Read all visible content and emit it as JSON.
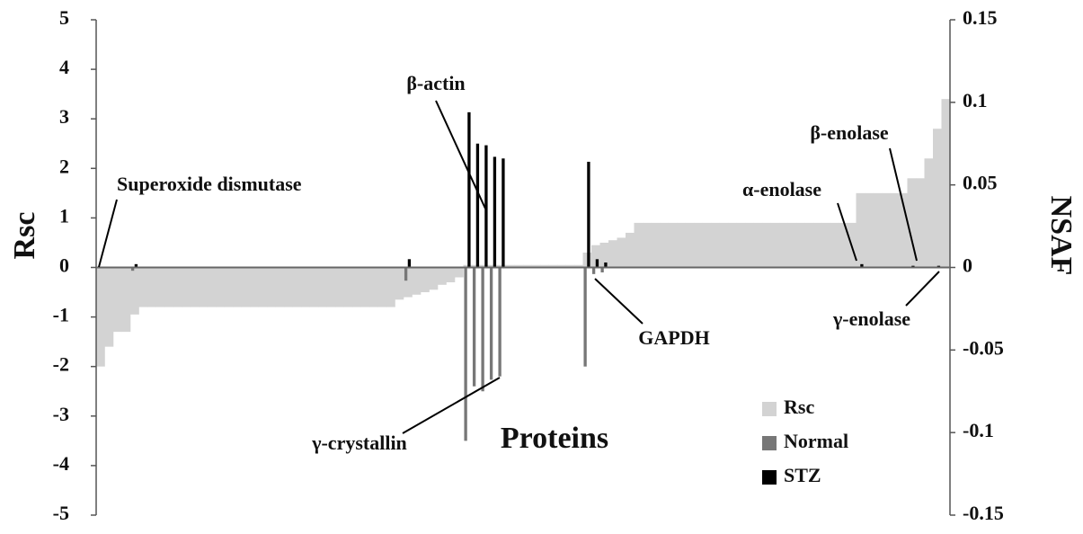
{
  "chart_data": {
    "type": "bar",
    "ylabel": "Rsc",
    "y2label": "NSAF",
    "xlabel": "Proteins",
    "ylim": [
      -5,
      5
    ],
    "yticks": [
      -5,
      -4,
      -3,
      -2,
      -1,
      0,
      1,
      2,
      3,
      4,
      5
    ],
    "y2lim": [
      -0.15,
      0.15
    ],
    "y2ticks": [
      -0.15,
      -0.1,
      -0.05,
      0,
      0.05,
      0.1,
      0.15
    ],
    "legend": "lower right",
    "annotations": [
      "Superoxide dismutase",
      "β-actin",
      "α-enolase",
      "β-enolase",
      "γ-enolase",
      "GAPDH",
      "γ-crystallin"
    ],
    "series": [
      {
        "name": "Rsc",
        "color": "#d3d3d3",
        "axis": "y",
        "values": [
          -2,
          -1.6,
          -1.3,
          -1.3,
          -0.95,
          -0.8,
          -0.8,
          -0.8,
          -0.8,
          -0.8,
          -0.8,
          -0.8,
          -0.8,
          -0.8,
          -0.8,
          -0.8,
          -0.8,
          -0.8,
          -0.8,
          -0.8,
          -0.8,
          -0.8,
          -0.8,
          -0.8,
          -0.8,
          -0.8,
          -0.8,
          -0.8,
          -0.8,
          -0.8,
          -0.8,
          -0.8,
          -0.8,
          -0.8,
          -0.8,
          -0.65,
          -0.6,
          -0.55,
          -0.5,
          -0.45,
          -0.35,
          -0.3,
          -0.2,
          0.05,
          0.05,
          0.05,
          0.05,
          0.05,
          0.05,
          0.05,
          0.05,
          0.05,
          0.05,
          0.05,
          0.05,
          0.05,
          0.05,
          0.3,
          0.45,
          0.5,
          0.55,
          0.6,
          0.7,
          0.9,
          0.9,
          0.9,
          0.9,
          0.9,
          0.9,
          0.9,
          0.9,
          0.9,
          0.9,
          0.9,
          0.9,
          0.9,
          0.9,
          0.9,
          0.9,
          0.9,
          0.9,
          0.9,
          0.9,
          0.9,
          0.9,
          0.9,
          0.9,
          0.9,
          0.9,
          1.5,
          1.5,
          1.5,
          1.5,
          1.5,
          1.5,
          1.8,
          1.8,
          2.2,
          2.8,
          3.4
        ]
      },
      {
        "name": "Normal",
        "color": "#777777",
        "axis": "y2",
        "values": [
          0,
          0,
          0,
          0,
          -0.002,
          0,
          0,
          0,
          0,
          0,
          0,
          0,
          0,
          0,
          0,
          0,
          0,
          0,
          0,
          0,
          0,
          0,
          0,
          0,
          0,
          0,
          0,
          0,
          0,
          0,
          0,
          0,
          0,
          0,
          0,
          0,
          -0.008,
          0,
          0,
          0,
          0,
          0,
          0,
          -0.105,
          -0.072,
          -0.075,
          -0.068,
          -0.066,
          0,
          0,
          0,
          0,
          0,
          0,
          0,
          0,
          0,
          -0.06,
          -0.004,
          -0.003,
          0,
          0,
          0,
          0,
          0,
          0,
          0,
          0,
          0,
          0,
          0,
          0,
          0,
          0,
          0,
          0,
          0,
          0,
          0,
          0,
          0,
          0,
          0,
          0,
          0,
          0,
          0,
          0,
          0,
          0,
          0,
          0,
          0,
          0,
          0,
          0,
          0,
          0,
          0,
          0
        ]
      },
      {
        "name": "STZ",
        "color": "#000000",
        "axis": "y2",
        "values": [
          0,
          0,
          0,
          0,
          0.002,
          0,
          0,
          0,
          0,
          0,
          0,
          0,
          0,
          0,
          0,
          0,
          0,
          0,
          0,
          0,
          0,
          0,
          0,
          0,
          0,
          0,
          0,
          0,
          0,
          0,
          0,
          0,
          0,
          0,
          0,
          0,
          0.005,
          0,
          0,
          0,
          0,
          0,
          0,
          0.094,
          0.075,
          0.074,
          0.067,
          0.066,
          0,
          0,
          0,
          0,
          0,
          0,
          0,
          0,
          0,
          0.064,
          0.005,
          0.003,
          0,
          0,
          0,
          0,
          0,
          0,
          0,
          0,
          0,
          0,
          0,
          0,
          0,
          0,
          0,
          0,
          0,
          0,
          0,
          0,
          0,
          0,
          0,
          0,
          0,
          0,
          0,
          0,
          0,
          0.002,
          0,
          0,
          0,
          0,
          0,
          0.001,
          0,
          0,
          0.001,
          0
        ]
      }
    ]
  }
}
